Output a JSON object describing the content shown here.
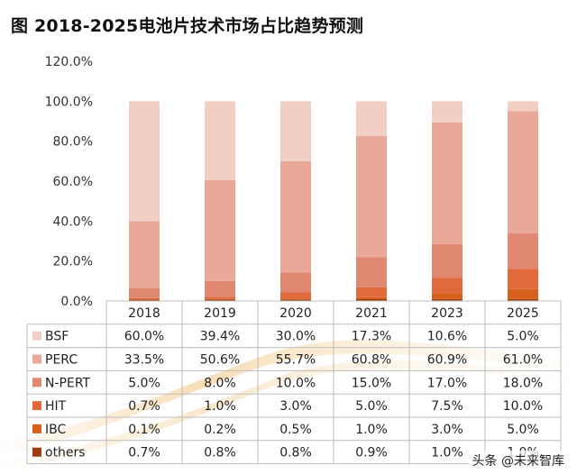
{
  "title": "图 2018-2025电池片技术市场占比趋势预测",
  "chart_data": {
    "type": "stacked-bar-with-data-table",
    "title": "图 2018-2025电池片技术市场占比趋势预测",
    "categories": [
      "2018",
      "2019",
      "2020",
      "2021",
      "2023",
      "2025"
    ],
    "y_ticks": [
      "120.0%",
      "100.0%",
      "80.0%",
      "60.0%",
      "40.0%",
      "20.0%",
      "0.0%"
    ],
    "ylim": [
      0,
      120
    ],
    "series": [
      {
        "name": "BSF",
        "color": "#f2cfc5",
        "values": [
          60.0,
          39.4,
          30.0,
          17.3,
          10.6,
          5.0
        ],
        "labels": [
          "60.0%",
          "39.4%",
          "30.0%",
          "17.3%",
          "10.6%",
          "5.0%"
        ]
      },
      {
        "name": "PERC",
        "color": "#e9a898",
        "values": [
          33.5,
          50.6,
          55.7,
          60.8,
          60.9,
          61.0
        ],
        "labels": [
          "33.5%",
          "50.6%",
          "55.7%",
          "60.8%",
          "60.9%",
          "61.0%"
        ]
      },
      {
        "name": "N-PERT",
        "color": "#e08872",
        "values": [
          5.0,
          8.0,
          10.0,
          15.0,
          17.0,
          18.0
        ],
        "labels": [
          "5.0%",
          "8.0%",
          "10.0%",
          "15.0%",
          "17.0%",
          "18.0%"
        ]
      },
      {
        "name": "HIT",
        "color": "#e06a3c",
        "values": [
          0.7,
          1.0,
          3.0,
          5.0,
          7.5,
          10.0
        ],
        "labels": [
          "0.7%",
          "1.0%",
          "3.0%",
          "5.0%",
          "7.5%",
          "10.0%"
        ]
      },
      {
        "name": "IBC",
        "color": "#d6601c",
        "values": [
          0.1,
          0.2,
          0.5,
          1.0,
          3.0,
          5.0
        ],
        "labels": [
          "0.1%",
          "0.2%",
          "0.5%",
          "1.0%",
          "3.0%",
          "5.0%"
        ]
      },
      {
        "name": "others",
        "color": "#9a3e12",
        "values": [
          0.7,
          0.8,
          0.8,
          0.9,
          1.0,
          1.0
        ],
        "labels": [
          "0.7%",
          "0.8%",
          "0.8%",
          "0.9%",
          "1.0%",
          "1.0%"
        ]
      }
    ]
  },
  "watermark": "头条 @未来智库"
}
